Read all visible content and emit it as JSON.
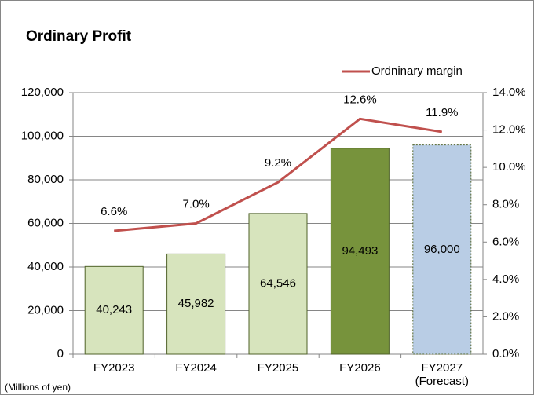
{
  "chart_data": {
    "type": "bar_line",
    "title": "Ordinary Profit",
    "footnote": "(Millions of yen)",
    "categories": [
      "FY2023",
      "FY2024",
      "FY2025",
      "FY2026",
      "FY2027\n(Forecast)"
    ],
    "series": [
      {
        "name": "Ordinary profit",
        "type": "bar",
        "colors": [
          "#d7e4bd",
          "#d7e4bd",
          "#d7e4bd",
          "#77933c",
          "#b9cde5"
        ],
        "edge_color": "#4f6228",
        "values": [
          40243,
          45982,
          64546,
          94493,
          96000
        ],
        "value_labels": [
          "40,243",
          "45,982",
          "64,546",
          "94,493",
          "96,000"
        ]
      },
      {
        "name": "Ordninary margin",
        "type": "line",
        "axis": "y2",
        "color": "#c0504d",
        "values": [
          6.6,
          7.0,
          9.2,
          12.6,
          11.9
        ],
        "value_labels": [
          "6.6%",
          "7.0%",
          "9.2%",
          "12.6%",
          "11.9%"
        ]
      }
    ],
    "ylim": [
      0,
      120000
    ],
    "yticks": [
      0,
      {
        "value": 20000,
        "label": "20,000"
      },
      {
        "value": 40000,
        "label": "40,000"
      },
      {
        "value": 60000,
        "label": "60,000"
      },
      {
        "value": 80000,
        "label": "80,000"
      },
      {
        "value": 100000,
        "label": "100,000"
      },
      {
        "value": 120000,
        "label": "120,000"
      }
    ],
    "y2lim": [
      0,
      14
    ],
    "y2ticks": [
      {
        "value": 0,
        "label": "0.0%"
      },
      {
        "value": 2,
        "label": "2.0%"
      },
      {
        "value": 4,
        "label": "4.0%"
      },
      {
        "value": 6,
        "label": "6.0%"
      },
      {
        "value": 8,
        "label": "8.0%"
      },
      {
        "value": 10,
        "label": "10.0%"
      },
      {
        "value": 12,
        "label": "12.0%"
      },
      {
        "value": 14,
        "label": "14.0%"
      }
    ],
    "grid": true,
    "legend": "top-right"
  }
}
